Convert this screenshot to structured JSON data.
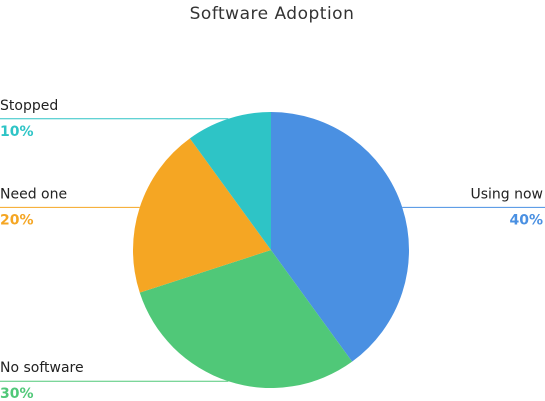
{
  "chart_data": {
    "type": "pie",
    "title": "Software Adoption",
    "categories": [
      "Using now",
      "No software",
      "Need one",
      "Stopped"
    ],
    "values": [
      40,
      30,
      20,
      10
    ],
    "value_labels": [
      "40%",
      "30%",
      "20%",
      "10%"
    ],
    "colors": [
      "#4a90e2",
      "#50c878",
      "#f5a623",
      "#2ec4c6"
    ]
  }
}
